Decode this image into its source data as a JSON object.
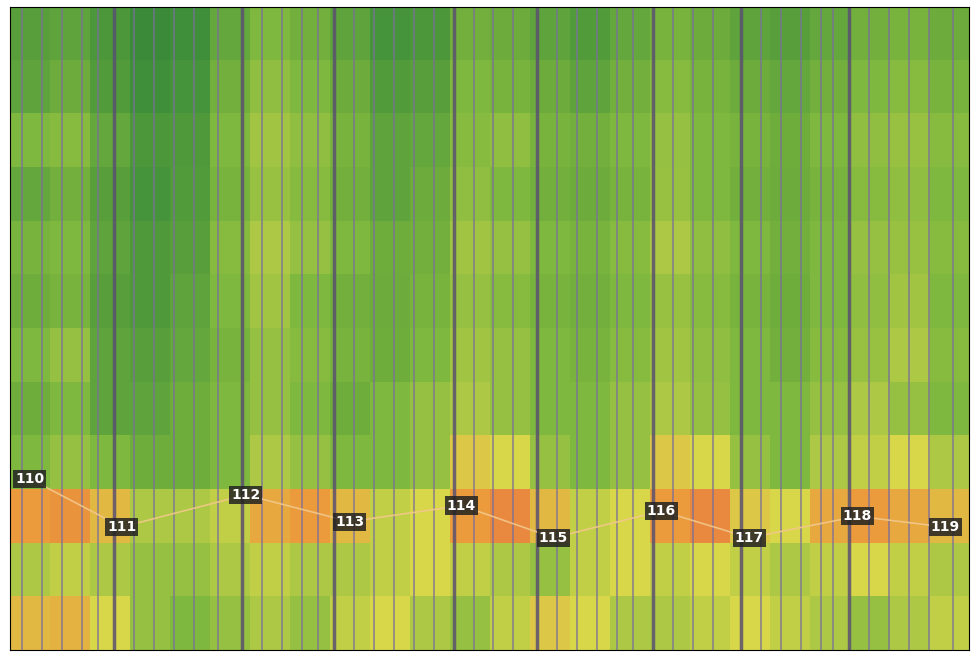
{
  "chart_data": {
    "type": "heatmap",
    "xlim": [
      0,
      24
    ],
    "ylim": [
      0,
      12
    ],
    "tick_labels": false,
    "clim": [
      0,
      1
    ],
    "cells": [
      [
        0.7,
        0.72,
        0.6,
        0.45,
        0.4,
        0.45,
        0.5,
        0.45,
        0.55,
        0.6,
        0.5,
        0.45,
        0.55,
        0.65,
        0.6,
        0.5,
        0.5,
        0.55,
        0.6,
        0.55,
        0.5,
        0.45,
        0.5,
        0.55
      ],
      [
        0.5,
        0.55,
        0.5,
        0.45,
        0.45,
        0.5,
        0.55,
        0.5,
        0.5,
        0.55,
        0.6,
        0.55,
        0.5,
        0.45,
        0.55,
        0.6,
        0.55,
        0.6,
        0.55,
        0.5,
        0.55,
        0.6,
        0.55,
        0.5
      ],
      [
        0.8,
        0.82,
        0.7,
        0.5,
        0.5,
        0.55,
        0.75,
        0.8,
        0.7,
        0.55,
        0.6,
        0.8,
        0.85,
        0.7,
        0.55,
        0.6,
        0.8,
        0.85,
        0.65,
        0.6,
        0.75,
        0.8,
        0.75,
        0.7
      ],
      [
        0.4,
        0.45,
        0.4,
        0.35,
        0.35,
        0.4,
        0.5,
        0.45,
        0.4,
        0.4,
        0.45,
        0.65,
        0.6,
        0.45,
        0.4,
        0.45,
        0.65,
        0.6,
        0.45,
        0.4,
        0.5,
        0.55,
        0.6,
        0.5
      ],
      [
        0.35,
        0.4,
        0.3,
        0.3,
        0.35,
        0.4,
        0.45,
        0.4,
        0.35,
        0.4,
        0.45,
        0.5,
        0.45,
        0.4,
        0.4,
        0.45,
        0.5,
        0.45,
        0.4,
        0.4,
        0.45,
        0.5,
        0.45,
        0.4
      ],
      [
        0.4,
        0.45,
        0.3,
        0.28,
        0.32,
        0.38,
        0.45,
        0.42,
        0.38,
        0.35,
        0.4,
        0.48,
        0.45,
        0.4,
        0.38,
        0.42,
        0.48,
        0.44,
        0.4,
        0.36,
        0.42,
        0.46,
        0.5,
        0.42
      ],
      [
        0.35,
        0.38,
        0.28,
        0.25,
        0.3,
        0.4,
        0.48,
        0.4,
        0.36,
        0.34,
        0.38,
        0.45,
        0.42,
        0.38,
        0.36,
        0.4,
        0.46,
        0.42,
        0.38,
        0.35,
        0.4,
        0.44,
        0.48,
        0.4
      ],
      [
        0.38,
        0.4,
        0.3,
        0.25,
        0.28,
        0.42,
        0.5,
        0.45,
        0.4,
        0.35,
        0.36,
        0.48,
        0.45,
        0.4,
        0.38,
        0.42,
        0.5,
        0.44,
        0.4,
        0.36,
        0.4,
        0.45,
        0.46,
        0.42
      ],
      [
        0.32,
        0.36,
        0.28,
        0.22,
        0.26,
        0.38,
        0.46,
        0.42,
        0.36,
        0.3,
        0.34,
        0.44,
        0.4,
        0.36,
        0.34,
        0.38,
        0.46,
        0.4,
        0.36,
        0.34,
        0.38,
        0.42,
        0.44,
        0.4
      ],
      [
        0.4,
        0.42,
        0.32,
        0.24,
        0.25,
        0.4,
        0.48,
        0.44,
        0.38,
        0.3,
        0.32,
        0.42,
        0.44,
        0.38,
        0.36,
        0.4,
        0.45,
        0.4,
        0.38,
        0.35,
        0.4,
        0.44,
        0.46,
        0.42
      ],
      [
        0.3,
        0.34,
        0.26,
        0.2,
        0.22,
        0.36,
        0.44,
        0.4,
        0.34,
        0.26,
        0.28,
        0.4,
        0.38,
        0.34,
        0.3,
        0.36,
        0.42,
        0.38,
        0.34,
        0.32,
        0.36,
        0.4,
        0.42,
        0.38
      ],
      [
        0.28,
        0.3,
        0.24,
        0.18,
        0.2,
        0.32,
        0.4,
        0.36,
        0.3,
        0.22,
        0.24,
        0.36,
        0.34,
        0.3,
        0.26,
        0.32,
        0.38,
        0.34,
        0.3,
        0.28,
        0.32,
        0.36,
        0.38,
        0.34
      ]
    ],
    "beat_lines": [
      0.3,
      0.8,
      1.3,
      1.8,
      2.2,
      3.1,
      3.6,
      4.1,
      4.6,
      5.2,
      6.3,
      6.8,
      7.3,
      7.7,
      8.6,
      9.1,
      9.6,
      10.1,
      10.6,
      11.6,
      12.1,
      12.6,
      13.7,
      14.2,
      14.7,
      15.2,
      15.6,
      16.6,
      17.1,
      17.6,
      18.8,
      19.3,
      19.8,
      20.3,
      20.6,
      21.5,
      22.0,
      22.5,
      23.0,
      23.6
    ],
    "bar_lines": [
      2.6,
      5.8,
      8.1,
      11.1,
      13.2,
      16.1,
      18.3,
      21.0
    ],
    "markers": [
      {
        "label": "110",
        "x": 0.5,
        "y": 3.2
      },
      {
        "label": "111",
        "x": 2.8,
        "y": 2.3
      },
      {
        "label": "112",
        "x": 5.9,
        "y": 2.9
      },
      {
        "label": "113",
        "x": 8.5,
        "y": 2.4
      },
      {
        "label": "114",
        "x": 11.3,
        "y": 2.7
      },
      {
        "label": "115",
        "x": 13.6,
        "y": 2.1
      },
      {
        "label": "116",
        "x": 16.3,
        "y": 2.6
      },
      {
        "label": "117",
        "x": 18.5,
        "y": 2.1
      },
      {
        "label": "118",
        "x": 21.2,
        "y": 2.5
      },
      {
        "label": "119",
        "x": 23.4,
        "y": 2.3
      }
    ]
  }
}
